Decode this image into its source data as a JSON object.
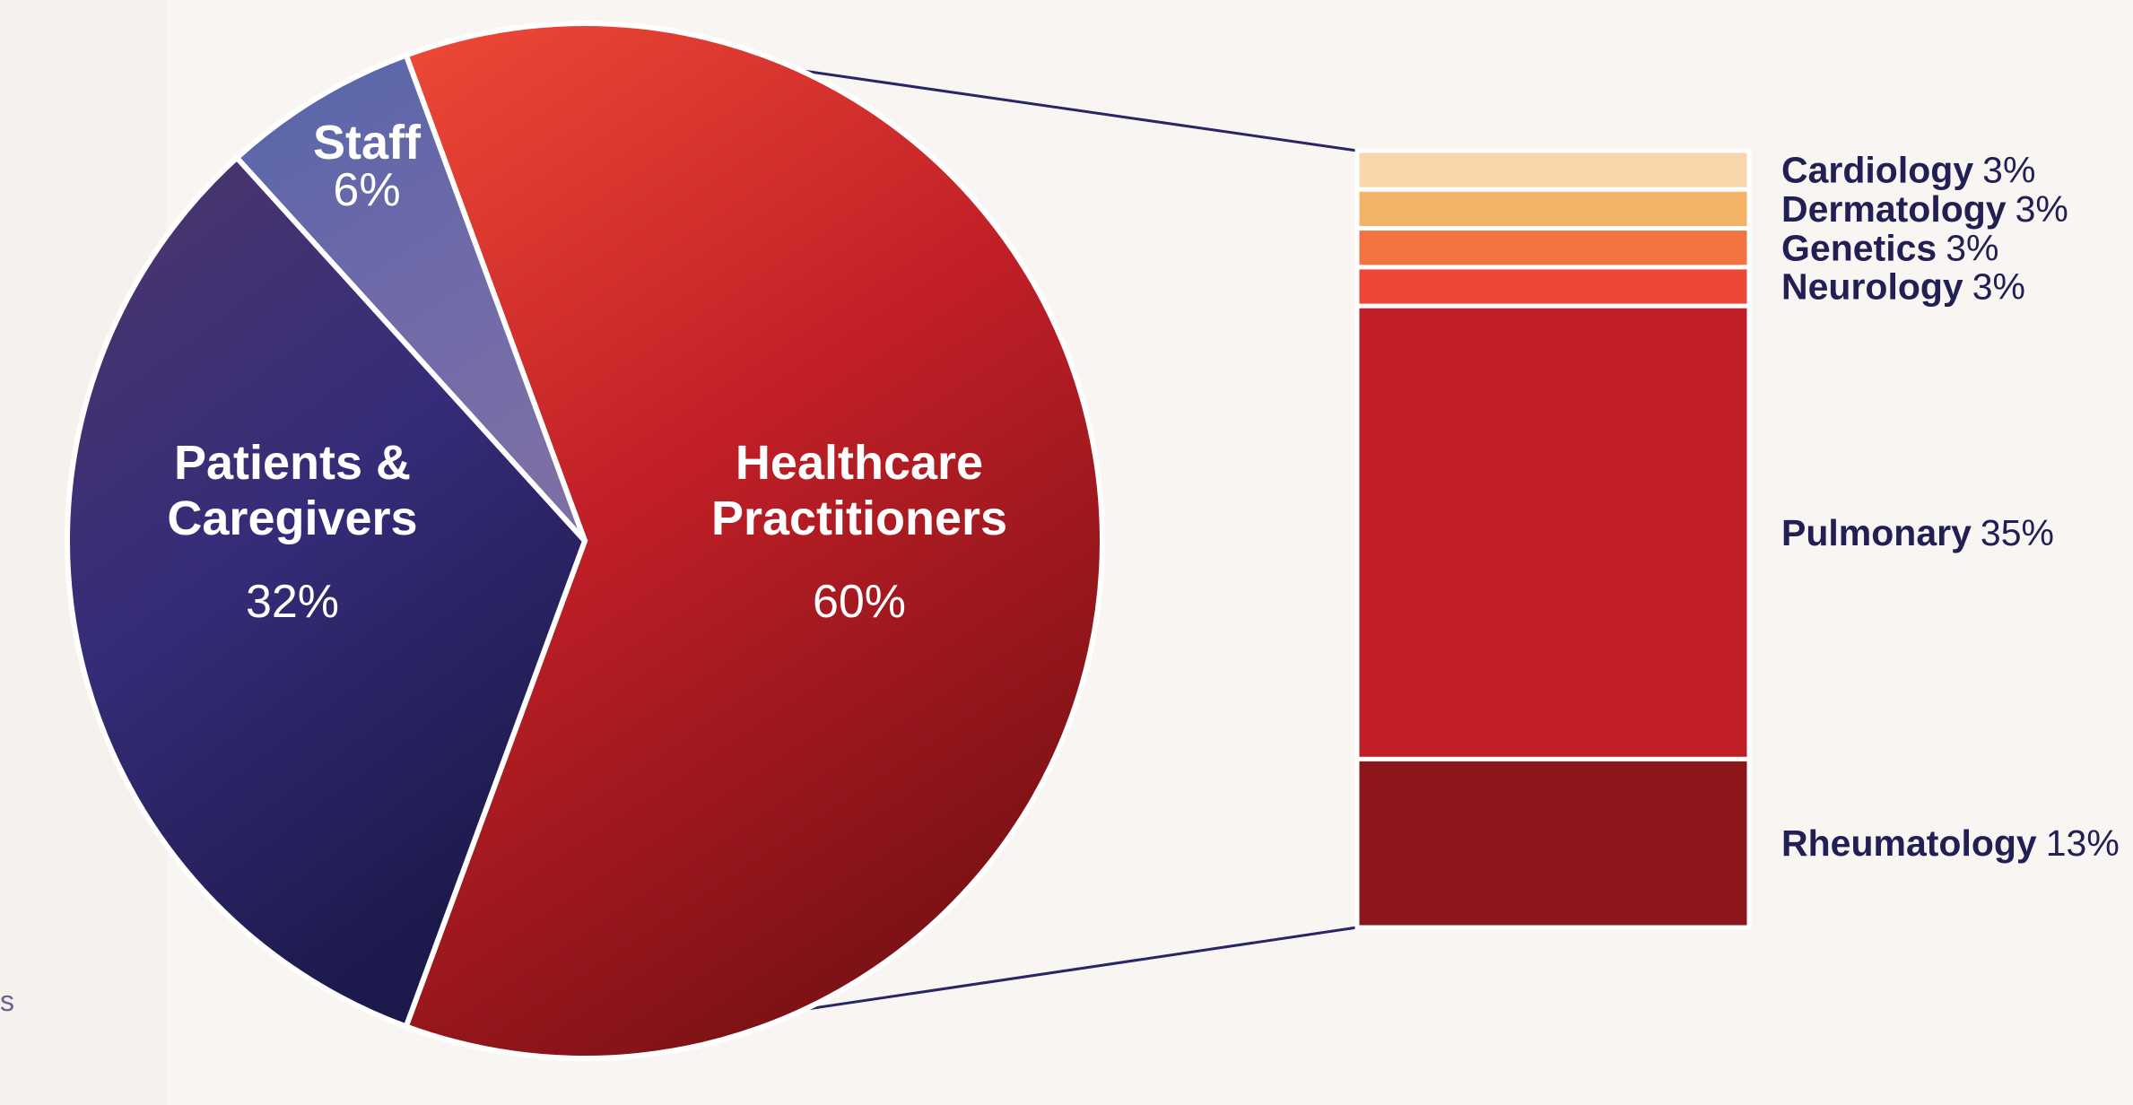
{
  "colors": {
    "background": "#f8f5f2",
    "connector": "#2a2566",
    "label_dark": "#221f55",
    "slice_text": "#ffffff"
  },
  "fragment_text": "s",
  "chart_data": [
    {
      "type": "pie",
      "slices": [
        {
          "label": "Healthcare Practitioners",
          "label_lines": [
            "Healthcare",
            "Practitioners"
          ],
          "value_label": "60%",
          "value": 60,
          "gradient": [
            "#ee4a37",
            "#c11f27",
            "#7e1216"
          ]
        },
        {
          "label": "Patients & Caregivers",
          "label_lines": [
            "Patients  &",
            "Caregivers"
          ],
          "value_label": "32%",
          "value": 32,
          "gradient": [
            "#4d376b",
            "#352c78",
            "#1c1a4c"
          ]
        },
        {
          "label": "Staff",
          "label_lines": [
            "Staff"
          ],
          "value_label": "6%",
          "value": 6,
          "gradient": [
            "#5466aa",
            "#6c69a9",
            "#7b6fa6"
          ]
        }
      ],
      "exploded_slice": "Healthcare Practitioners"
    },
    {
      "type": "bar",
      "orientation": "stacked-vertical",
      "segments": [
        {
          "name": "Cardiology",
          "value_label": "3%",
          "value": 3,
          "color": "#f9d6ab"
        },
        {
          "name": "Dermatology",
          "value_label": "3%",
          "value": 3,
          "color": "#f4b467"
        },
        {
          "name": "Genetics",
          "value_label": "3%",
          "value": 3,
          "color": "#f27240"
        },
        {
          "name": "Neurology",
          "value_label": "3%",
          "value": 3,
          "color": "#ec4636"
        },
        {
          "name": "Pulmonary",
          "value_label": "35%",
          "value": 35,
          "color": "#c11f27"
        },
        {
          "name": "Rheumatology",
          "value_label": "13%",
          "value": 13,
          "color": "#8c161a"
        }
      ]
    }
  ]
}
